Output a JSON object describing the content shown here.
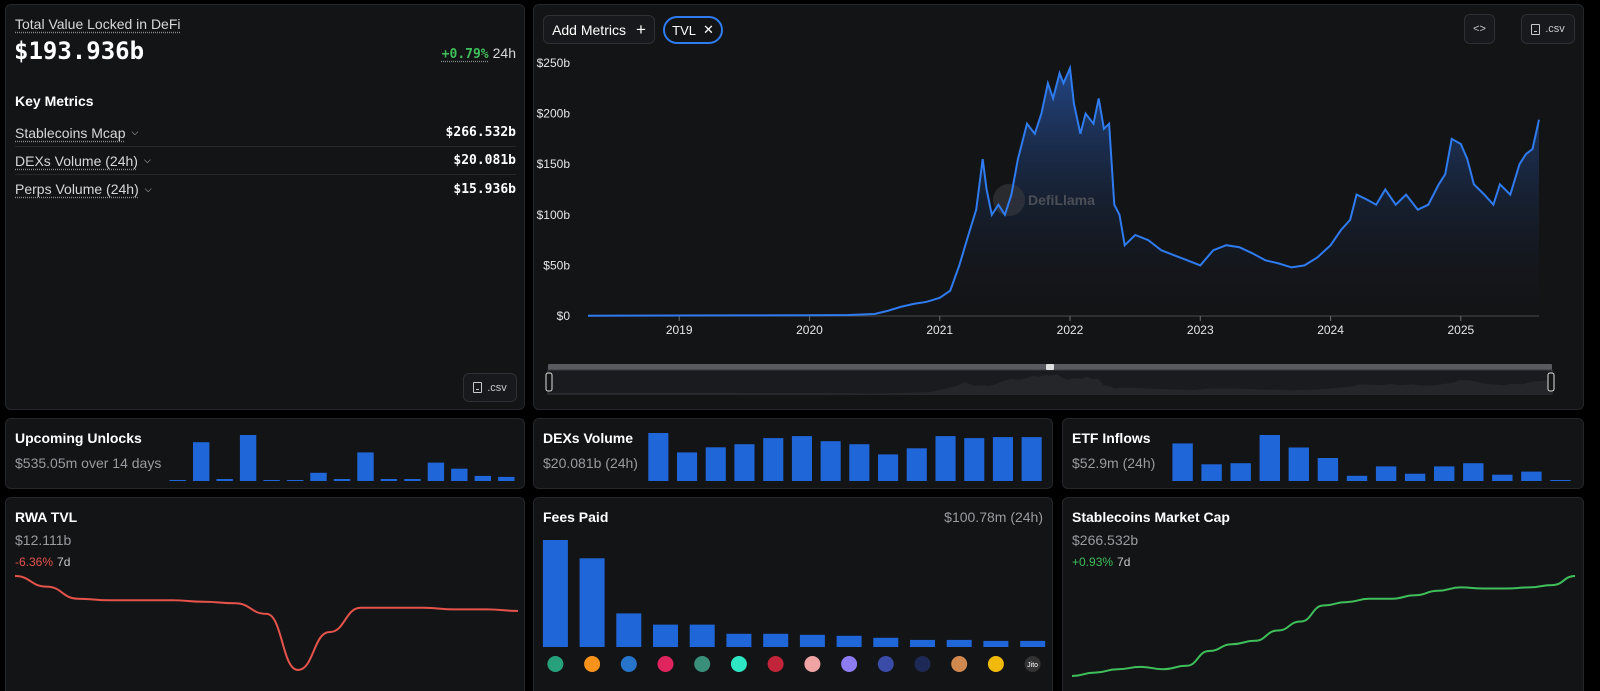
{
  "overview": {
    "tvl_label": "Total Value Locked in DeFi",
    "tvl_value": "$193.936b",
    "tvl_change": "+0.79%",
    "tvl_period": "24h",
    "key_metrics_title": "Key Metrics",
    "key_metrics": [
      {
        "label": "Stablecoins Mcap",
        "value": "$266.532b"
      },
      {
        "label": "DEXs Volume (24h)",
        "value": "$20.081b"
      },
      {
        "label": "Perps Volume (24h)",
        "value": "$15.936b"
      }
    ],
    "csv_label": ".csv"
  },
  "main_chart": {
    "add_metrics_label": "Add Metrics",
    "chip_label": "TVL",
    "code_button_icon": "code-icon",
    "csv_label": ".csv",
    "watermark": "DefiLlama",
    "line_color": "#2f7bf0",
    "chart_data": {
      "type": "area",
      "title": "",
      "xlabel": "",
      "ylabel": "",
      "x_ticks": [
        "2019",
        "2020",
        "2021",
        "2022",
        "2023",
        "2024",
        "2025"
      ],
      "y_ticks": [
        "$0",
        "$50b",
        "$100b",
        "$150b",
        "$200b",
        "$250b"
      ],
      "ylim": [
        0,
        250
      ],
      "xlim": [
        2018.3,
        2025.6
      ],
      "series": [
        {
          "values_unit": "billions USD",
          "x": [
            2018.3,
            2018.6,
            2019.0,
            2019.5,
            2020.0,
            2020.3,
            2020.5,
            2020.6,
            2020.7,
            2020.8,
            2020.9,
            2021.0,
            2021.08,
            2021.15,
            2021.22,
            2021.28,
            2021.33,
            2021.36,
            2021.4,
            2021.45,
            2021.5,
            2021.55,
            2021.6,
            2021.67,
            2021.73,
            2021.78,
            2021.83,
            2021.87,
            2021.92,
            2021.95,
            2022.0,
            2022.03,
            2022.08,
            2022.12,
            2022.18,
            2022.22,
            2022.26,
            2022.3,
            2022.34,
            2022.38,
            2022.42,
            2022.5,
            2022.6,
            2022.7,
            2022.8,
            2022.9,
            2023.0,
            2023.1,
            2023.2,
            2023.3,
            2023.4,
            2023.5,
            2023.6,
            2023.7,
            2023.8,
            2023.9,
            2024.0,
            2024.08,
            2024.15,
            2024.2,
            2024.28,
            2024.35,
            2024.42,
            2024.5,
            2024.58,
            2024.67,
            2024.75,
            2024.83,
            2024.88,
            2024.93,
            2025.0,
            2025.05,
            2025.1,
            2025.18,
            2025.25,
            2025.3,
            2025.38,
            2025.45,
            2025.5,
            2025.55,
            2025.6
          ],
          "values": [
            0.3,
            0.4,
            0.5,
            0.6,
            0.7,
            1.0,
            2.0,
            5.0,
            9.0,
            12.0,
            14.0,
            18.0,
            25.0,
            50.0,
            80.0,
            105.0,
            155.0,
            125.0,
            100.0,
            110.0,
            100.0,
            120.0,
            155.0,
            190.0,
            180.0,
            200.0,
            230.0,
            215.0,
            240.0,
            230.0,
            245.0,
            210.0,
            180.0,
            200.0,
            190.0,
            215.0,
            185.0,
            190.0,
            110.0,
            100.0,
            70.0,
            80.0,
            75.0,
            65.0,
            60.0,
            55.0,
            50.0,
            65.0,
            70.0,
            68.0,
            62.0,
            55.0,
            52.0,
            48.0,
            50.0,
            58.0,
            70.0,
            85.0,
            95.0,
            120.0,
            115.0,
            110.0,
            125.0,
            110.0,
            120.0,
            105.0,
            110.0,
            130.0,
            140.0,
            175.0,
            170.0,
            155.0,
            130.0,
            120.0,
            110.0,
            130.0,
            120.0,
            150.0,
            160.0,
            165.0,
            194.0
          ]
        }
      ]
    }
  },
  "upcoming_unlocks": {
    "title": "Upcoming Unlocks",
    "subtitle": "$535.05m over 14 days",
    "bar_color": "#1f66d9",
    "chart_data": {
      "type": "bar",
      "values": [
        1,
        38,
        2,
        45,
        1,
        1,
        8,
        2,
        28,
        2,
        2,
        18,
        12,
        5,
        4
      ]
    }
  },
  "dexs_volume": {
    "title": "DEXs Volume",
    "subtitle": "$20.081b (24h)",
    "bar_color": "#1f66d9",
    "chart_data": {
      "type": "bar",
      "values": [
        47,
        28,
        33,
        36,
        42,
        44,
        39,
        36,
        26,
        32,
        44,
        42,
        43,
        43
      ]
    }
  },
  "etf_inflows": {
    "title": "ETF Inflows",
    "subtitle": "$52.9m (24h)",
    "bar_color": "#1f66d9",
    "chart_data": {
      "type": "bar",
      "values": [
        36,
        16,
        17,
        44,
        32,
        22,
        5,
        14,
        7,
        14,
        17,
        6,
        9,
        1
      ]
    }
  },
  "rwa_tvl": {
    "title": "RWA TVL",
    "value": "$12.111b",
    "change": "-6.36%",
    "period": "7d",
    "line_color": "#e5534b",
    "chart_data": {
      "type": "line",
      "values": [
        100,
        93,
        85,
        84,
        84,
        84,
        83,
        82,
        75,
        38,
        63,
        79,
        79,
        79,
        78,
        78,
        77
      ]
    }
  },
  "fees_paid": {
    "title": "Fees Paid",
    "value": "$100.78m (24h)",
    "bar_color": "#1f66d9",
    "protocol_icons": [
      "tether-icon",
      "bitcoin-icon",
      "usdc-icon",
      "pump-icon",
      "ethena-icon",
      "hyperliquid-icon",
      "tron-icon",
      "lido-icon",
      "phantom-icon",
      "sky-icon",
      "aave-icon",
      "pancakeswap-icon",
      "bnb-icon",
      "jito-icon"
    ],
    "protocol_icon_labels": [
      "",
      "",
      "",
      "",
      "",
      "",
      "",
      "",
      "",
      "",
      "",
      "",
      "",
      "Jito"
    ],
    "chart_data": {
      "type": "bar",
      "values": [
        105,
        87,
        33,
        22,
        22,
        13,
        13,
        12,
        11,
        9,
        7,
        7,
        6,
        6
      ]
    }
  },
  "stablecoins_mcap": {
    "title": "Stablecoins Market Cap",
    "value": "$266.532b",
    "change": "+0.93%",
    "period": "7d",
    "line_color": "#3fbf5a",
    "chart_data": {
      "type": "line",
      "values": [
        2,
        5,
        8,
        10,
        8,
        11,
        24,
        30,
        33,
        42,
        50,
        64,
        67,
        70,
        70,
        73,
        77,
        80,
        79,
        79,
        80,
        82,
        90
      ]
    }
  }
}
